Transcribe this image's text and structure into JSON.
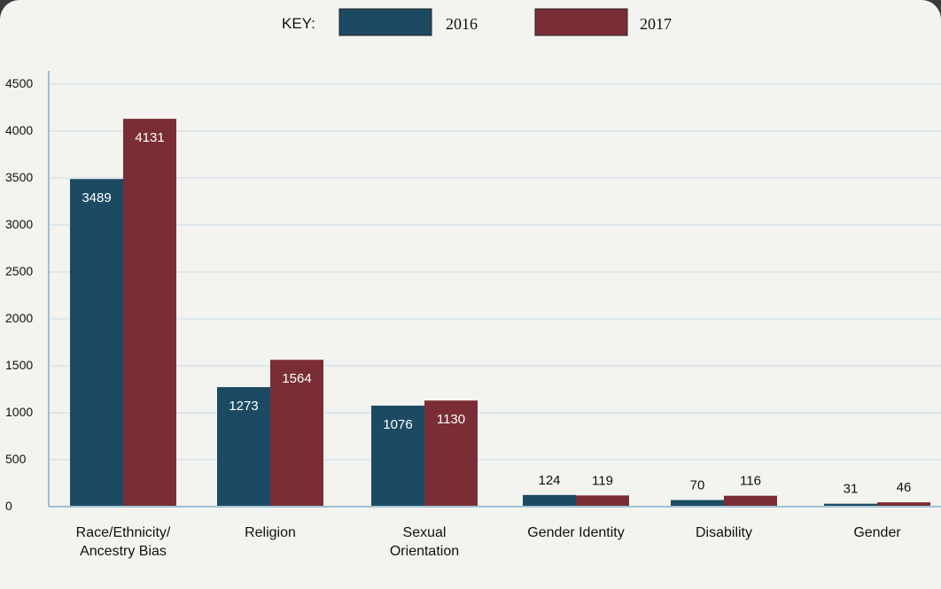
{
  "chart_data": {
    "type": "bar",
    "title": "",
    "xlabel": "",
    "ylabel": "",
    "legend_title": "KEY:",
    "legend_position": "top-center",
    "grid": true,
    "ylim": [
      0,
      4500
    ],
    "yticks": [
      "0",
      "500",
      "1000",
      "1500",
      "2000",
      "2500",
      "3000",
      "3500",
      "4000",
      "4500"
    ],
    "categories": [
      [
        "Race/Ethnicity/",
        "Ancestry Bias"
      ],
      [
        "Religion"
      ],
      [
        "Sexual",
        "Orientation"
      ],
      [
        "Gender Identity"
      ],
      [
        "Disability"
      ],
      [
        "Gender"
      ]
    ],
    "series": [
      {
        "name": "2016",
        "color": "#1d4a63",
        "values": [
          3489,
          1273,
          1076,
          124,
          70,
          31
        ]
      },
      {
        "name": "2017",
        "color": "#7b2d35",
        "values": [
          4131,
          1564,
          1130,
          119,
          116,
          46
        ]
      }
    ]
  }
}
